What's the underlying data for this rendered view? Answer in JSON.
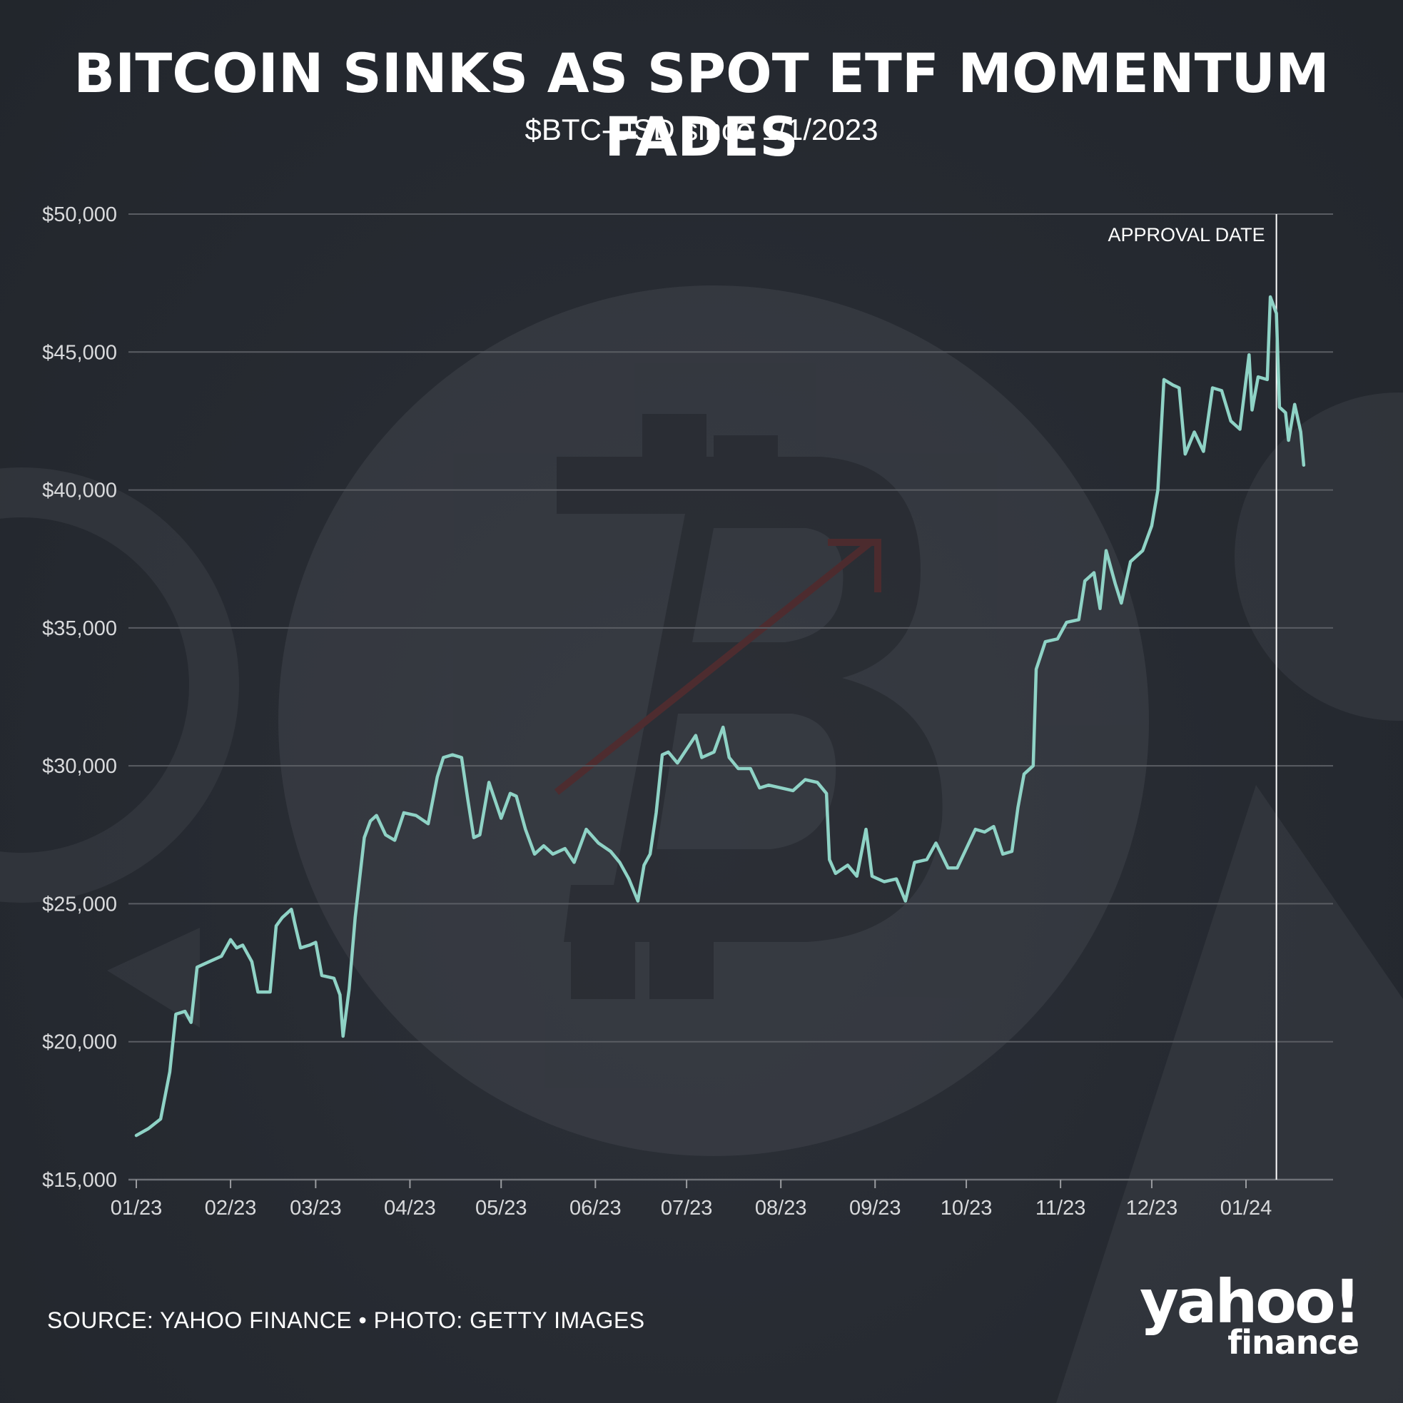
{
  "chart_data": {
    "type": "line",
    "title": "BITCOIN SINKS AS SPOT ETF MOMENTUM FADES",
    "subtitle": "$BTC-USD since 1/1/2023",
    "xlabel": "",
    "ylabel": "",
    "ylim": [
      15000,
      50000
    ],
    "yticks": [
      15000,
      20000,
      25000,
      30000,
      35000,
      40000,
      45000,
      50000
    ],
    "ytick_labels": [
      "$15,000",
      "$20,000",
      "$25,000",
      "$30,000",
      "$35,000",
      "$40,000",
      "$45,000",
      "$50,000"
    ],
    "xlim": [
      "2023-01-01",
      "2024-01-24"
    ],
    "xticks": [
      "2023-01-01",
      "2023-02-01",
      "2023-03-01",
      "2023-04-01",
      "2023-05-01",
      "2023-06-01",
      "2023-07-01",
      "2023-08-01",
      "2023-09-01",
      "2023-10-01",
      "2023-11-01",
      "2023-12-01",
      "2024-01-01"
    ],
    "xtick_labels": [
      "01/23",
      "02/23",
      "03/23",
      "04/23",
      "05/23",
      "06/23",
      "07/23",
      "08/23",
      "09/23",
      "10/23",
      "11/23",
      "12/23",
      "01/24"
    ],
    "grid": true,
    "color": "#8fd3c6",
    "annotations": [
      {
        "x": "2024-01-11",
        "label": "APPROVAL DATE"
      }
    ],
    "series": [
      {
        "points": [
          [
            "2023-01-01",
            16600
          ],
          [
            "2023-01-05",
            16850
          ],
          [
            "2023-01-09",
            17200
          ],
          [
            "2023-01-12",
            18900
          ],
          [
            "2023-01-14",
            21000
          ],
          [
            "2023-01-17",
            21100
          ],
          [
            "2023-01-19",
            20700
          ],
          [
            "2023-01-21",
            22700
          ],
          [
            "2023-01-25",
            22900
          ],
          [
            "2023-01-29",
            23100
          ],
          [
            "2023-02-01",
            23700
          ],
          [
            "2023-02-03",
            23400
          ],
          [
            "2023-02-05",
            23500
          ],
          [
            "2023-02-08",
            22900
          ],
          [
            "2023-02-10",
            21800
          ],
          [
            "2023-02-14",
            21800
          ],
          [
            "2023-02-16",
            24200
          ],
          [
            "2023-02-18",
            24500
          ],
          [
            "2023-02-21",
            24800
          ],
          [
            "2023-02-24",
            23400
          ],
          [
            "2023-02-27",
            23500
          ],
          [
            "2023-03-01",
            23600
          ],
          [
            "2023-03-03",
            22400
          ],
          [
            "2023-03-07",
            22300
          ],
          [
            "2023-03-09",
            21700
          ],
          [
            "2023-03-10",
            20200
          ],
          [
            "2023-03-12",
            21900
          ],
          [
            "2023-03-14",
            24500
          ],
          [
            "2023-03-17",
            27400
          ],
          [
            "2023-03-19",
            28000
          ],
          [
            "2023-03-21",
            28200
          ],
          [
            "2023-03-24",
            27500
          ],
          [
            "2023-03-27",
            27300
          ],
          [
            "2023-03-30",
            28300
          ],
          [
            "2023-04-03",
            28200
          ],
          [
            "2023-04-07",
            27900
          ],
          [
            "2023-04-10",
            29600
          ],
          [
            "2023-04-12",
            30300
          ],
          [
            "2023-04-15",
            30400
          ],
          [
            "2023-04-18",
            30300
          ],
          [
            "2023-04-20",
            28800
          ],
          [
            "2023-04-22",
            27400
          ],
          [
            "2023-04-24",
            27500
          ],
          [
            "2023-04-27",
            29400
          ],
          [
            "2023-05-01",
            28100
          ],
          [
            "2023-05-04",
            29000
          ],
          [
            "2023-05-06",
            28900
          ],
          [
            "2023-05-09",
            27700
          ],
          [
            "2023-05-12",
            26800
          ],
          [
            "2023-05-15",
            27100
          ],
          [
            "2023-05-18",
            26800
          ],
          [
            "2023-05-22",
            27000
          ],
          [
            "2023-05-25",
            26500
          ],
          [
            "2023-05-29",
            27700
          ],
          [
            "2023-06-02",
            27200
          ],
          [
            "2023-06-06",
            26900
          ],
          [
            "2023-06-09",
            26500
          ],
          [
            "2023-06-12",
            25900
          ],
          [
            "2023-06-15",
            25100
          ],
          [
            "2023-06-17",
            26400
          ],
          [
            "2023-06-19",
            26800
          ],
          [
            "2023-06-21",
            28300
          ],
          [
            "2023-06-23",
            30400
          ],
          [
            "2023-06-25",
            30500
          ],
          [
            "2023-06-28",
            30100
          ],
          [
            "2023-07-01",
            30600
          ],
          [
            "2023-07-04",
            31100
          ],
          [
            "2023-07-06",
            30300
          ],
          [
            "2023-07-10",
            30500
          ],
          [
            "2023-07-13",
            31400
          ],
          [
            "2023-07-15",
            30300
          ],
          [
            "2023-07-18",
            29900
          ],
          [
            "2023-07-22",
            29900
          ],
          [
            "2023-07-25",
            29200
          ],
          [
            "2023-07-28",
            29300
          ],
          [
            "2023-08-01",
            29200
          ],
          [
            "2023-08-05",
            29100
          ],
          [
            "2023-08-09",
            29500
          ],
          [
            "2023-08-13",
            29400
          ],
          [
            "2023-08-16",
            29000
          ],
          [
            "2023-08-17",
            26600
          ],
          [
            "2023-08-19",
            26100
          ],
          [
            "2023-08-23",
            26400
          ],
          [
            "2023-08-26",
            26000
          ],
          [
            "2023-08-29",
            27700
          ],
          [
            "2023-08-31",
            26000
          ],
          [
            "2023-09-04",
            25800
          ],
          [
            "2023-09-08",
            25900
          ],
          [
            "2023-09-11",
            25100
          ],
          [
            "2023-09-14",
            26500
          ],
          [
            "2023-09-18",
            26600
          ],
          [
            "2023-09-21",
            27200
          ],
          [
            "2023-09-25",
            26300
          ],
          [
            "2023-09-28",
            26300
          ],
          [
            "2023-10-01",
            27000
          ],
          [
            "2023-10-04",
            27700
          ],
          [
            "2023-10-07",
            27600
          ],
          [
            "2023-10-10",
            27800
          ],
          [
            "2023-10-13",
            26800
          ],
          [
            "2023-10-16",
            26900
          ],
          [
            "2023-10-18",
            28500
          ],
          [
            "2023-10-20",
            29700
          ],
          [
            "2023-10-23",
            30000
          ],
          [
            "2023-10-24",
            33500
          ],
          [
            "2023-10-27",
            34500
          ],
          [
            "2023-10-31",
            34600
          ],
          [
            "2023-11-03",
            35200
          ],
          [
            "2023-11-07",
            35300
          ],
          [
            "2023-11-09",
            36700
          ],
          [
            "2023-11-12",
            37000
          ],
          [
            "2023-11-14",
            35700
          ],
          [
            "2023-11-16",
            37800
          ],
          [
            "2023-11-19",
            36600
          ],
          [
            "2023-11-21",
            35900
          ],
          [
            "2023-11-24",
            37400
          ],
          [
            "2023-11-28",
            37800
          ],
          [
            "2023-12-01",
            38700
          ],
          [
            "2023-12-03",
            40000
          ],
          [
            "2023-12-05",
            44000
          ],
          [
            "2023-12-08",
            43800
          ],
          [
            "2023-12-10",
            43700
          ],
          [
            "2023-12-12",
            41300
          ],
          [
            "2023-12-15",
            42100
          ],
          [
            "2023-12-18",
            41400
          ],
          [
            "2023-12-21",
            43700
          ],
          [
            "2023-12-24",
            43600
          ],
          [
            "2023-12-27",
            42500
          ],
          [
            "2023-12-30",
            42200
          ],
          [
            "2024-01-02",
            44900
          ],
          [
            "2024-01-03",
            42900
          ],
          [
            "2024-01-05",
            44100
          ],
          [
            "2024-01-08",
            44000
          ],
          [
            "2024-01-09",
            47000
          ],
          [
            "2024-01-11",
            46400
          ],
          [
            "2024-01-12",
            43000
          ],
          [
            "2024-01-14",
            42800
          ],
          [
            "2024-01-15",
            41800
          ],
          [
            "2024-01-17",
            43100
          ],
          [
            "2024-01-19",
            42100
          ],
          [
            "2024-01-20",
            40900
          ]
        ]
      }
    ]
  },
  "footer": {
    "source": "SOURCE: YAHOO FINANCE • PHOTO: GETTY IMAGES",
    "logo_top": "yahoo!",
    "logo_bottom": "finance"
  }
}
